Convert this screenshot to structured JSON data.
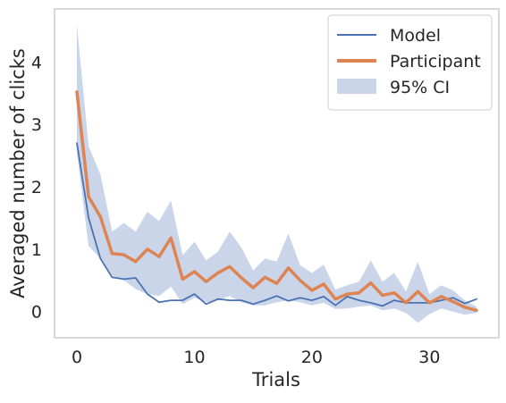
{
  "chart_data": {
    "type": "line",
    "title": "",
    "xlabel": "Trials",
    "ylabel": "Averaged number of clicks",
    "xlim": [
      -1.9,
      35.9
    ],
    "ylim": [
      -0.42,
      4.85
    ],
    "xticks": [
      0,
      10,
      20,
      30
    ],
    "yticks": [
      0,
      1,
      2,
      3,
      4
    ],
    "grid": false,
    "legend_position": "top-right",
    "x": [
      0,
      1,
      2,
      3,
      4,
      5,
      6,
      7,
      8,
      9,
      10,
      11,
      12,
      13,
      14,
      15,
      16,
      17,
      18,
      19,
      20,
      21,
      22,
      23,
      24,
      25,
      26,
      27,
      28,
      29,
      30,
      31,
      32,
      33,
      34
    ],
    "series": [
      {
        "name": "Model",
        "kind": "line",
        "color": "#4c72b0",
        "values": [
          2.7,
          1.5,
          0.85,
          0.55,
          0.52,
          0.54,
          0.28,
          0.15,
          0.18,
          0.18,
          0.28,
          0.12,
          0.2,
          0.18,
          0.18,
          0.12,
          0.18,
          0.25,
          0.17,
          0.22,
          0.18,
          0.24,
          0.1,
          0.24,
          0.18,
          0.14,
          0.09,
          0.18,
          0.14,
          0.14,
          0.14,
          0.18,
          0.22,
          0.13,
          0.2
        ]
      },
      {
        "name": "Participant",
        "kind": "line",
        "color": "#dd8452",
        "values": [
          3.52,
          1.84,
          1.52,
          0.93,
          0.91,
          0.8,
          1.0,
          0.88,
          1.18,
          0.52,
          0.64,
          0.48,
          0.62,
          0.72,
          0.54,
          0.38,
          0.55,
          0.45,
          0.7,
          0.5,
          0.34,
          0.44,
          0.2,
          0.28,
          0.3,
          0.46,
          0.26,
          0.3,
          0.14,
          0.32,
          0.14,
          0.24,
          0.16,
          0.07,
          0.02
        ]
      },
      {
        "name": "95% CI",
        "kind": "band",
        "color": "#a6b9dc",
        "lower": [
          2.55,
          1.05,
          0.85,
          0.58,
          0.5,
          0.36,
          0.28,
          0.25,
          0.4,
          0.12,
          0.22,
          0.15,
          0.18,
          0.25,
          0.15,
          0.1,
          0.1,
          0.15,
          0.18,
          0.15,
          0.1,
          0.14,
          0.04,
          0.05,
          0.08,
          0.1,
          0.02,
          0.05,
          -0.02,
          -0.18,
          -0.04,
          0.05,
          0.0,
          -0.05,
          -0.02
        ],
        "upper": [
          4.6,
          2.65,
          2.2,
          1.28,
          1.42,
          1.28,
          1.6,
          1.45,
          1.78,
          0.9,
          1.12,
          0.82,
          0.96,
          1.28,
          1.02,
          0.66,
          0.85,
          0.8,
          1.25,
          0.74,
          0.62,
          0.75,
          0.35,
          0.42,
          0.48,
          0.82,
          0.48,
          0.62,
          0.32,
          0.8,
          0.28,
          0.42,
          0.34,
          0.18,
          0.08
        ]
      }
    ]
  },
  "legend": {
    "items": [
      {
        "label": "Model",
        "color": "#4c72b0",
        "style": "line"
      },
      {
        "label": "Participant",
        "color": "#dd8452",
        "style": "thick-line"
      },
      {
        "label": "95% CI",
        "color": "#a6b9dc",
        "style": "patch"
      }
    ]
  },
  "colors": {
    "axes_edge": "#cccccc",
    "text": "#262626",
    "background": "#ffffff"
  }
}
